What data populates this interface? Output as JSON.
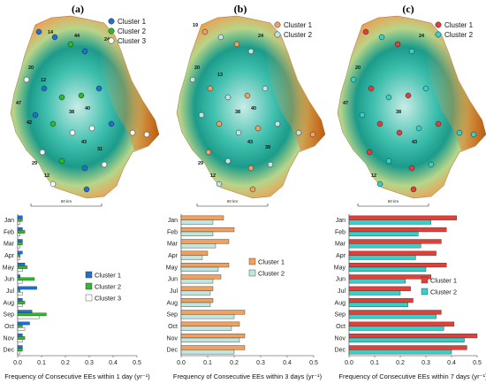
{
  "panels": [
    {
      "letter": "(a)"
    },
    {
      "letter": "(b)"
    },
    {
      "letter": "(c)"
    }
  ],
  "maps": [
    {
      "legend": [
        {
          "label": "Cluster 1",
          "color": "#1f6fd6"
        },
        {
          "label": "Cluster 2",
          "color": "#2fb82f"
        },
        {
          "label": "Cluster 3",
          "color": "#ffffff"
        }
      ],
      "scale_label": "60 km",
      "station_labels": [
        "14",
        "44",
        "24",
        "20",
        "12",
        "47",
        "42",
        "38",
        "40",
        "43",
        "31",
        "29",
        "12"
      ]
    },
    {
      "legend": [
        {
          "label": "Cluster 1",
          "color": "#f0a060"
        },
        {
          "label": "Cluster 2",
          "color": "#bfe6e0"
        }
      ],
      "scale_label": "60 km",
      "station_labels": [
        "19",
        "24",
        "20",
        "13",
        "38",
        "40",
        "43",
        "39",
        "29",
        "12"
      ]
    },
    {
      "legend": [
        {
          "label": "Cluster 1",
          "color": "#e0403a"
        },
        {
          "label": "Cluster 2",
          "color": "#35d0c8"
        }
      ],
      "scale_label": "60 km",
      "station_labels": [
        "24",
        "20",
        "47",
        "38",
        "43",
        "12"
      ]
    }
  ],
  "chart_data": [
    {
      "type": "bar",
      "orientation": "horizontal",
      "categories": [
        "Jan",
        "Feb",
        "Mar",
        "Apr",
        "May",
        "Jun",
        "Jul",
        "Aug",
        "Sep",
        "Oct",
        "Nov",
        "Dec"
      ],
      "series": [
        {
          "name": "Cluster 1",
          "color": "#1f6fd6",
          "values": [
            0.02,
            0.02,
            0.02,
            0.02,
            0.03,
            0.01,
            0.08,
            0.02,
            0.06,
            0.05,
            0.02,
            0.02
          ]
        },
        {
          "name": "Cluster 2",
          "color": "#2fb82f",
          "values": [
            0.02,
            0.03,
            0.02,
            0.01,
            0.04,
            0.07,
            0.01,
            0.03,
            0.12,
            0.02,
            0.03,
            0.02
          ]
        },
        {
          "name": "Cluster 3",
          "color": "#ffffff",
          "values": [
            0.01,
            0.01,
            0.01,
            0.01,
            0.02,
            0.02,
            0.02,
            0.02,
            0.09,
            0.03,
            0.02,
            0.01
          ]
        }
      ],
      "xlim": [
        0,
        0.5
      ],
      "xticks": [
        "0.0",
        "0.1",
        "0.2",
        "0.3",
        "0.4",
        "0.5"
      ],
      "xlabel": "Frequency of Consecutive EEs within 1 day (yr⁻¹)",
      "legend_position": "right"
    },
    {
      "type": "bar",
      "orientation": "horizontal",
      "categories": [
        "Jan",
        "Feb",
        "Mar",
        "Apr",
        "May",
        "Jun",
        "Jul",
        "Aug",
        "Sep",
        "Oct",
        "Nov",
        "Dec"
      ],
      "series": [
        {
          "name": "Cluster 1",
          "color": "#f0a060",
          "values": [
            0.16,
            0.2,
            0.18,
            0.1,
            0.18,
            0.15,
            0.12,
            0.12,
            0.24,
            0.22,
            0.24,
            0.24
          ]
        },
        {
          "name": "Cluster 2",
          "color": "#bfe6e0",
          "values": [
            0.12,
            0.12,
            0.13,
            0.08,
            0.14,
            0.12,
            0.11,
            0.11,
            0.2,
            0.19,
            0.22,
            0.2
          ]
        }
      ],
      "xlim": [
        0,
        0.5
      ],
      "xticks": [
        "0.0",
        "0.1",
        "0.2",
        "0.3",
        "0.4",
        "0.5"
      ],
      "xlabel": "Frequency of Consecutive EEs within 3 days (yr⁻¹)",
      "legend_position": "right"
    },
    {
      "type": "bar",
      "orientation": "horizontal",
      "categories": [
        "Jan",
        "Feb",
        "Mar",
        "Apr",
        "May",
        "Jun",
        "Jul",
        "Aug",
        "Sep",
        "Oct",
        "Nov",
        "Dec"
      ],
      "series": [
        {
          "name": "Cluster 1",
          "color": "#e0403a",
          "values": [
            0.42,
            0.38,
            0.36,
            0.34,
            0.38,
            0.32,
            0.24,
            0.25,
            0.36,
            0.41,
            0.5,
            0.46
          ]
        },
        {
          "name": "Cluster 2",
          "color": "#35d0c8",
          "values": [
            0.32,
            0.27,
            0.28,
            0.26,
            0.3,
            0.22,
            0.2,
            0.23,
            0.34,
            0.37,
            0.45,
            0.4
          ]
        }
      ],
      "xlim": [
        0,
        0.5
      ],
      "xticks": [
        "0.0",
        "0.1",
        "0.2",
        "0.3",
        "0.4",
        "0.5"
      ],
      "xlabel": "Frequency of Consecutive EEs within 7 days (yr⁻¹)",
      "legend_position": "right"
    }
  ]
}
